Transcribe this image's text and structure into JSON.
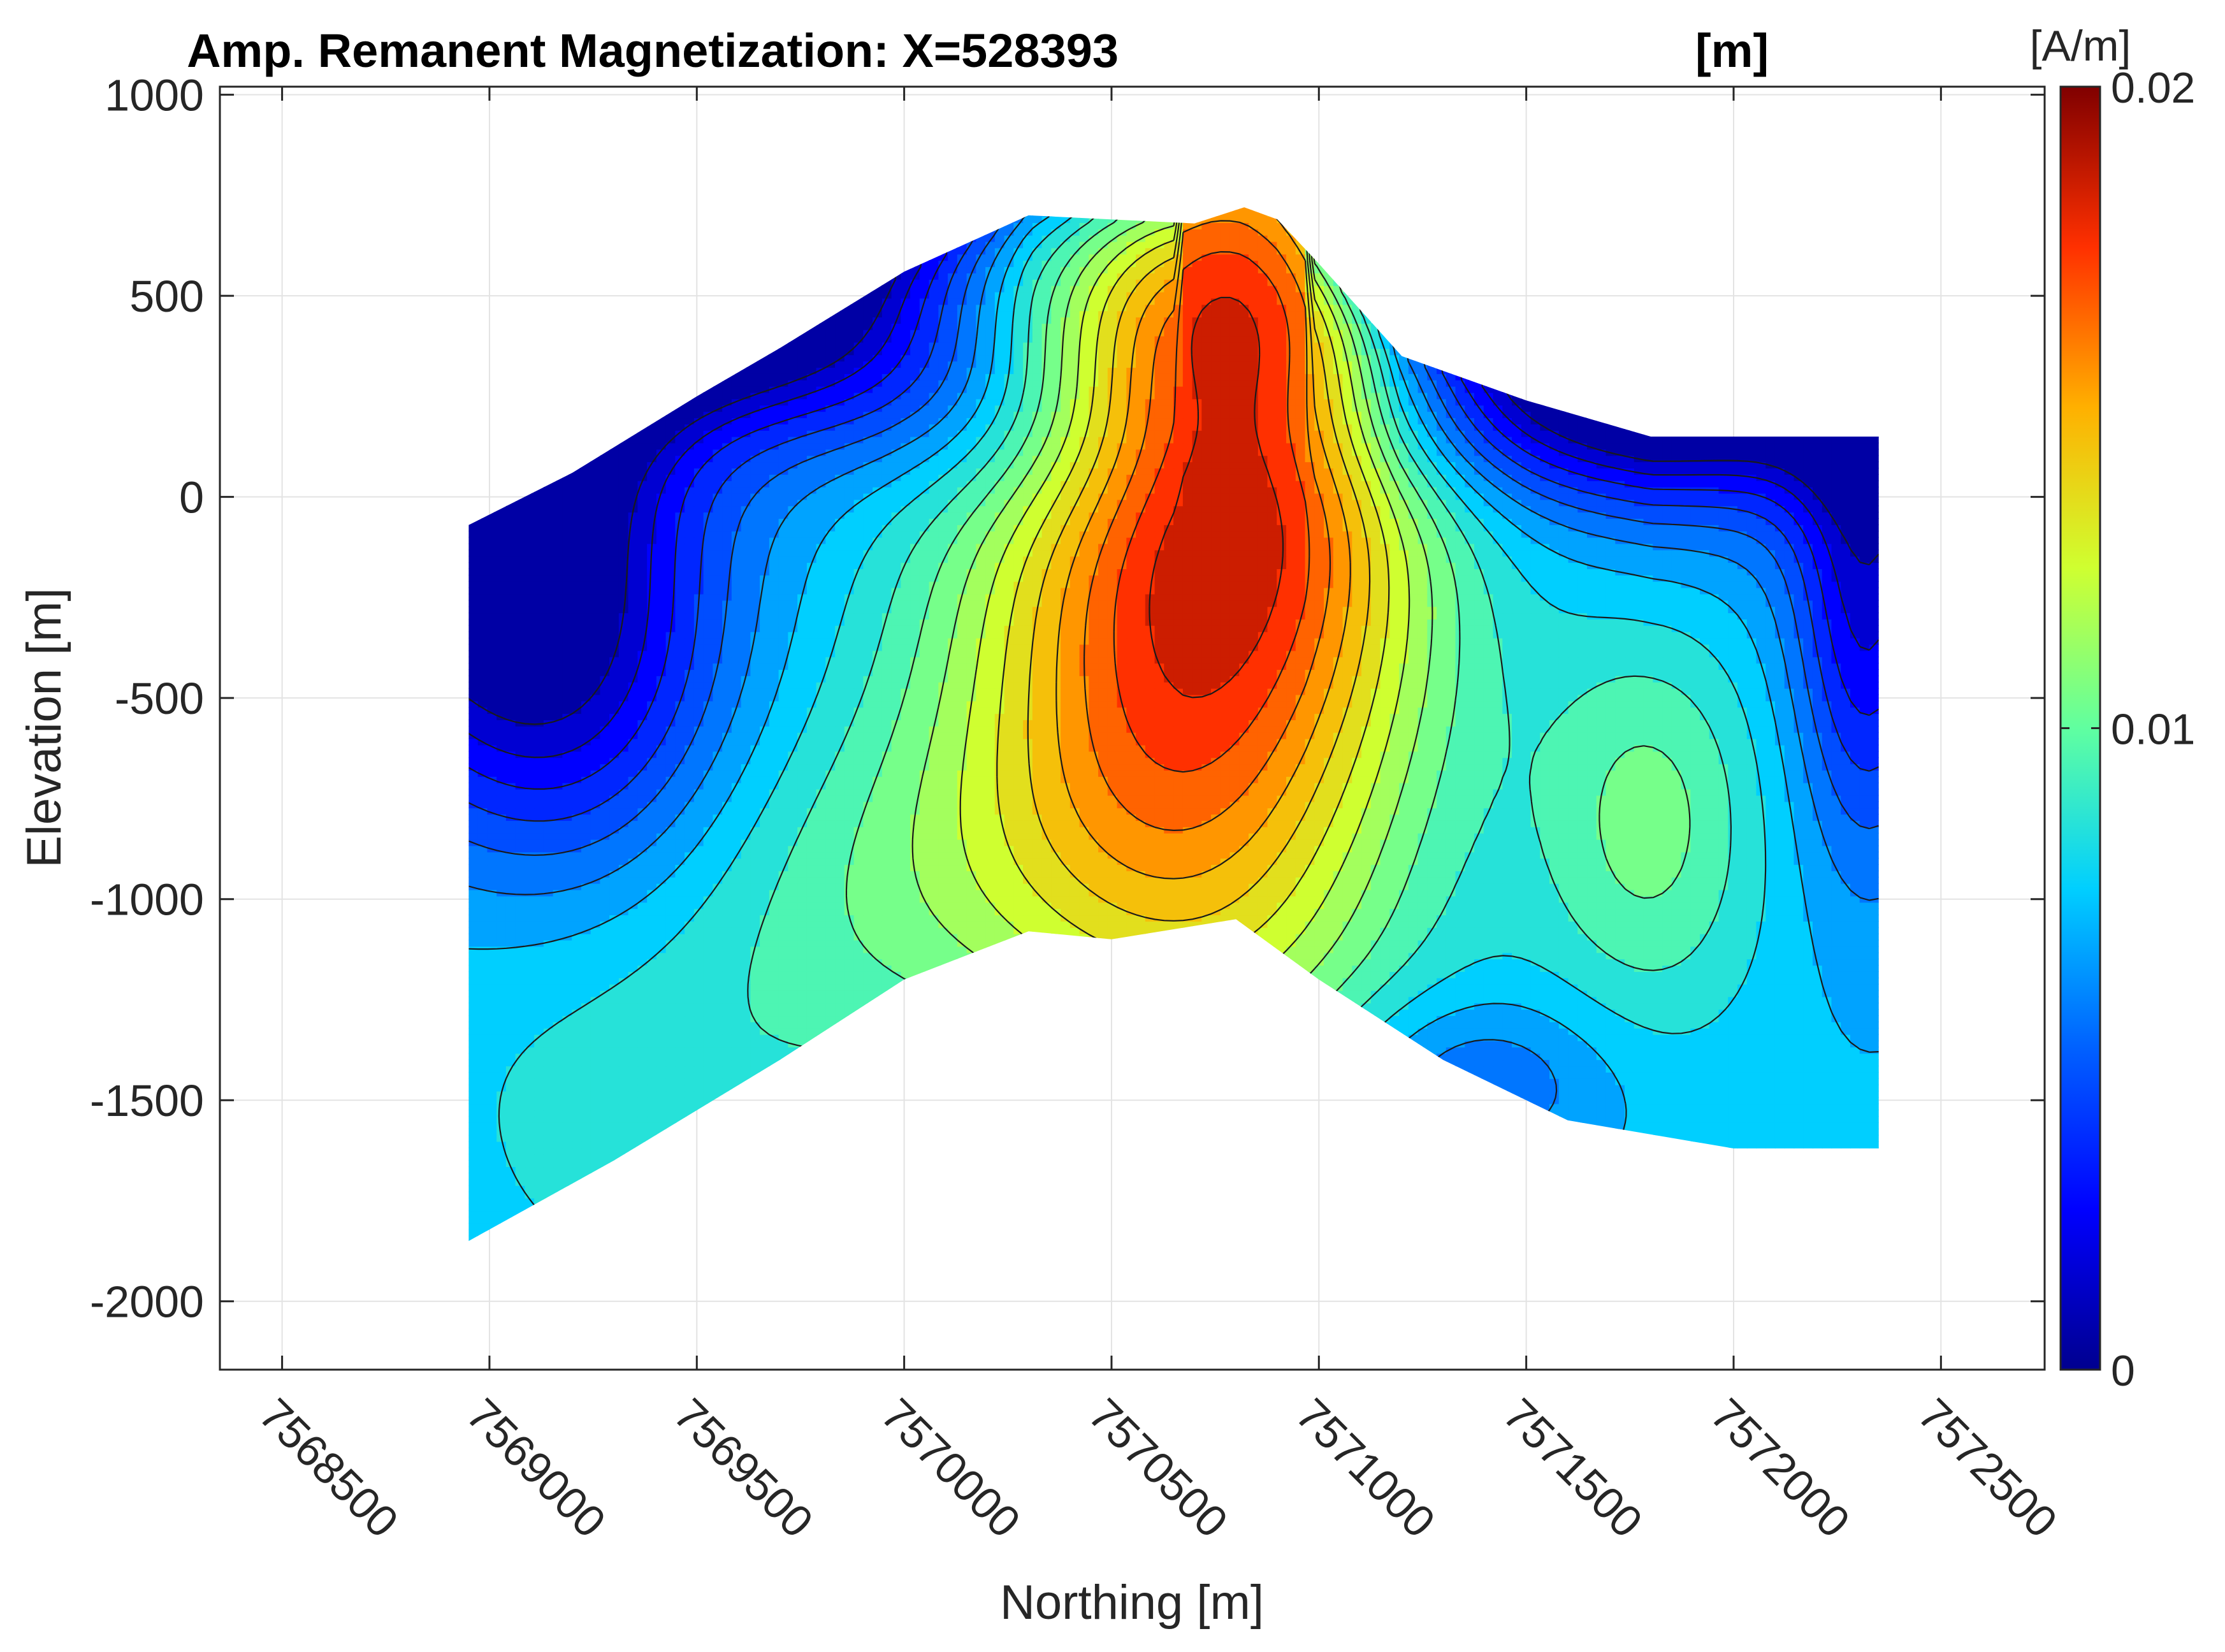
{
  "chart_data": {
    "type": "contour",
    "title": "Amp. Remanent Magnetization: X=528393",
    "title_unit": "[m]",
    "xlabel": "Northing [m]",
    "ylabel": "Elevation [m]",
    "xlim": [
      7568350,
      7572750
    ],
    "ylim": [
      -2170,
      1020
    ],
    "xticks": [
      7568500,
      7569000,
      7569500,
      7570000,
      7570500,
      7571000,
      7571500,
      7572000,
      7572500
    ],
    "xtick_labels": [
      "7568500",
      "7569000",
      "7569500",
      "7570000",
      "7570500",
      "7571000",
      "7571500",
      "7572000",
      "7572500"
    ],
    "yticks": [
      1000,
      500,
      0,
      -500,
      -1000,
      -1500,
      -2000
    ],
    "ytick_labels": [
      "1000",
      "500",
      "0",
      "-500",
      "-1000",
      "-1500",
      "-2000"
    ],
    "grid": true,
    "colormap": "jet",
    "colorbar": {
      "label": "[A/m]",
      "range": [
        0,
        0.02
      ],
      "ticks": [
        0,
        0.01,
        0.02
      ],
      "tick_labels": [
        "0",
        "0.01",
        "0.02"
      ]
    },
    "levels": [
      0.001,
      0.002,
      0.003,
      0.004,
      0.005,
      0.006,
      0.007,
      0.008,
      0.009,
      0.01,
      0.011,
      0.012,
      0.013,
      0.014,
      0.015,
      0.016,
      0.017,
      0.018,
      0.019
    ],
    "anomalies": [
      {
        "label": "main high",
        "x": 7570750,
        "y": 250,
        "value": 0.02
      },
      {
        "label": "secondary high",
        "x": 7571800,
        "y": -800,
        "value": 0.01
      },
      {
        "label": "west low",
        "x": 7569100,
        "y": -300,
        "value": 0.001
      },
      {
        "label": "east low",
        "x": 7572320,
        "y": -250,
        "value": 0.002
      }
    ],
    "domain_top": [
      [
        7568950,
        -70
      ],
      [
        7569200,
        60
      ],
      [
        7569500,
        250
      ],
      [
        7569700,
        370
      ],
      [
        7570000,
        560
      ],
      [
        7570300,
        700
      ],
      [
        7570700,
        680
      ],
      [
        7570820,
        720
      ],
      [
        7570900,
        690
      ],
      [
        7571000,
        580
      ],
      [
        7571200,
        350
      ],
      [
        7571500,
        240
      ],
      [
        7571800,
        150
      ],
      [
        7572350,
        150
      ]
    ],
    "domain_bottom": [
      [
        7568950,
        -1850
      ],
      [
        7569300,
        -1650
      ],
      [
        7569700,
        -1400
      ],
      [
        7570000,
        -1200
      ],
      [
        7570300,
        -1080
      ],
      [
        7570500,
        -1100
      ],
      [
        7570800,
        -1050
      ],
      [
        7571000,
        -1200
      ],
      [
        7571300,
        -1400
      ],
      [
        7571600,
        -1550
      ],
      [
        7572000,
        -1620
      ],
      [
        7572350,
        -1620
      ]
    ],
    "domain_x_range": [
      7568950,
      7572350
    ]
  }
}
